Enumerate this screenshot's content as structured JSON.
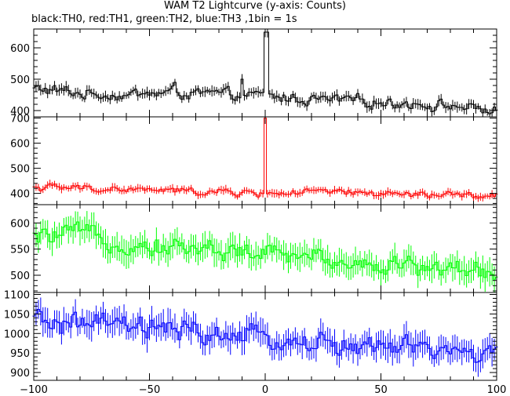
{
  "title": "WAM T2 Lightcurve (y-axis: Counts)",
  "subtitle": "black:TH0, red:TH1, green:TH2, blue:TH3 ,1bin = 1s",
  "chart_data": {
    "type": "line",
    "x_axis": {
      "range": [
        -100,
        100
      ],
      "ticks": [
        -100,
        -50,
        0,
        50,
        100
      ],
      "tick_labels": [
        "−100",
        "−50",
        "0",
        "50",
        "100"
      ]
    },
    "grid": false,
    "series": [
      {
        "name": "TH0",
        "color": "#000000",
        "ylim": [
          380,
          660
        ],
        "yticks": [
          400,
          500,
          600
        ],
        "ytick_labels": [
          "400",
          "500",
          "600"
        ],
        "baseline": [
          [
            -100,
            470
          ],
          [
            -80,
            455
          ],
          [
            -60,
            450
          ],
          [
            -40,
            458
          ],
          [
            -20,
            450
          ],
          [
            0,
            445
          ],
          [
            20,
            435
          ],
          [
            40,
            430
          ],
          [
            60,
            425
          ],
          [
            80,
            415
          ],
          [
            100,
            400
          ]
        ],
        "noise": 18,
        "err": 14,
        "spikes": [
          [
            -39,
            490
          ],
          [
            0,
            650
          ],
          [
            1,
            650
          ],
          [
            -10,
            500
          ]
        ]
      },
      {
        "name": "TH1",
        "color": "#ff0000",
        "ylim": [
          355,
          705
        ],
        "yticks": [
          400,
          500,
          600,
          700
        ],
        "ytick_labels": [
          "400",
          "500",
          "600",
          "700"
        ],
        "baseline": [
          [
            -100,
            425
          ],
          [
            -80,
            420
          ],
          [
            -60,
            415
          ],
          [
            -40,
            410
          ],
          [
            -20,
            405
          ],
          [
            0,
            400
          ],
          [
            20,
            405
          ],
          [
            40,
            400
          ],
          [
            60,
            395
          ],
          [
            80,
            392
          ],
          [
            100,
            388
          ]
        ],
        "noise": 14,
        "err": 13,
        "spikes": [
          [
            0,
            700
          ]
        ]
      },
      {
        "name": "TH2",
        "color": "#00ff00",
        "ylim": [
          467,
          635
        ],
        "yticks": [
          500,
          550,
          600
        ],
        "ytick_labels": [
          "500",
          "550",
          "600"
        ],
        "baseline": [
          [
            -100,
            570
          ],
          [
            -80,
            580
          ],
          [
            -60,
            560
          ],
          [
            -40,
            555
          ],
          [
            -20,
            548
          ],
          [
            0,
            540
          ],
          [
            20,
            535
          ],
          [
            40,
            525
          ],
          [
            60,
            518
          ],
          [
            80,
            512
          ],
          [
            100,
            508
          ]
        ],
        "noise": 18,
        "err": 22,
        "spikes": []
      },
      {
        "name": "TH3",
        "color": "#0000ff",
        "ylim": [
          880,
          1105
        ],
        "yticks": [
          900,
          950,
          1000,
          1050,
          1100
        ],
        "ytick_labels": [
          "900",
          "950",
          "1000",
          "1050",
          "1100"
        ],
        "baseline": [
          [
            -100,
            1030
          ],
          [
            -80,
            1025
          ],
          [
            -60,
            1015
          ],
          [
            -40,
            1005
          ],
          [
            -20,
            995
          ],
          [
            0,
            985
          ],
          [
            20,
            975
          ],
          [
            40,
            965
          ],
          [
            60,
            960
          ],
          [
            80,
            955
          ],
          [
            100,
            940
          ]
        ],
        "noise": 28,
        "err": 30,
        "spikes": []
      }
    ]
  }
}
